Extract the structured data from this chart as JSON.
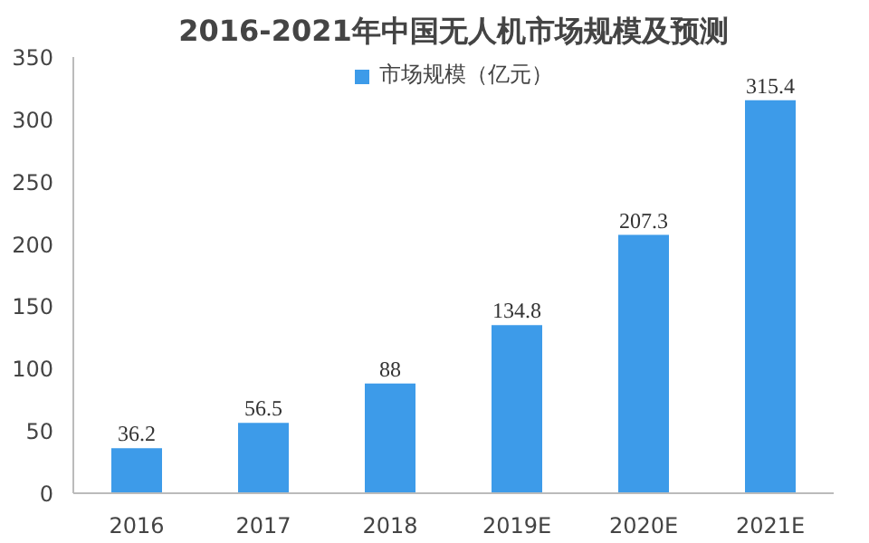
{
  "chart_data": {
    "type": "bar",
    "title": "2016-2021年中国无人机市场规模及预测",
    "categories": [
      "2016",
      "2017",
      "2018",
      "2019E",
      "2020E",
      "2021E"
    ],
    "series": [
      {
        "name": "市场规模（亿元）",
        "color": "#3d9be9",
        "values": [
          36.2,
          56.5,
          88,
          134.8,
          207.3,
          315.4
        ]
      }
    ],
    "ylim": [
      0,
      350
    ],
    "yticks": [
      0,
      50,
      100,
      150,
      200,
      250,
      300,
      350
    ],
    "grid": false,
    "legend": "top",
    "data_labels": true
  }
}
